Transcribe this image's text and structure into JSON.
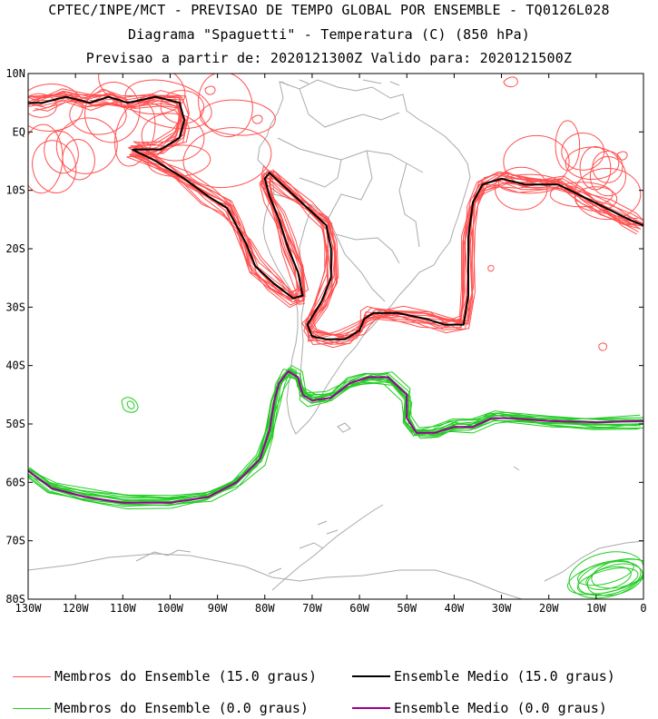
{
  "titles": {
    "line1": "CPTEC/INPE/MCT - PREVISAO DE TEMPO GLOBAL POR ENSEMBLE - TQ0126L028",
    "line2": "Diagrama \"Spaguetti\" - Temperatura (C) (850 hPa)",
    "line3": "Previsao a partir de: 2020121300Z  Valido para: 2020121500Z"
  },
  "axes": {
    "lat_labels": [
      "10N",
      "EQ",
      "10S",
      "20S",
      "30S",
      "40S",
      "50S",
      "60S",
      "70S",
      "80S"
    ],
    "lon_labels": [
      "130W",
      "120W",
      "110W",
      "100W",
      "90W",
      "80W",
      "70W",
      "60W",
      "50W",
      "40W",
      "30W",
      "20W",
      "10W",
      "0"
    ]
  },
  "colors": {
    "member_15": "#ff5050",
    "mean_15": "#000000",
    "member_0": "#22cc22",
    "mean_0": "#990099",
    "coast": "#aaaaaa"
  },
  "legend": {
    "member_15": "Membros do Ensemble (15.0 graus)",
    "mean_15": "Ensemble Medio (15.0 graus)",
    "member_0": "Membros do Ensemble (0.0 graus)",
    "mean_0": "Ensemble Medio (0.0 graus)"
  },
  "chart_data": {
    "type": "map",
    "region": {
      "lon": [
        -130,
        0
      ],
      "lat": [
        -80,
        10
      ]
    },
    "isotherms": [
      {
        "name": "Ensemble Medio (15.0 graus)",
        "value_c": 15.0,
        "lonlat": [
          [
            -130,
            5
          ],
          [
            -127,
            5
          ],
          [
            -122,
            6
          ],
          [
            -117,
            5
          ],
          [
            -113,
            6
          ],
          [
            -109,
            5
          ],
          [
            -103,
            6
          ],
          [
            -98,
            5
          ],
          [
            -97,
            2
          ],
          [
            -98,
            -1
          ],
          [
            -102,
            -3
          ],
          [
            -108,
            -3
          ],
          [
            -103,
            -5
          ],
          [
            -97,
            -8
          ],
          [
            -92,
            -11
          ],
          [
            -88,
            -13
          ],
          [
            -86,
            -16
          ],
          [
            -84,
            -19
          ],
          [
            -82,
            -23
          ],
          [
            -78,
            -26
          ],
          [
            -74,
            -28.5
          ],
          [
            -72,
            -28
          ],
          [
            -73,
            -24
          ],
          [
            -75,
            -20
          ],
          [
            -77,
            -15
          ],
          [
            -79,
            -11
          ],
          [
            -80,
            -8
          ],
          [
            -79,
            -7
          ],
          [
            -75,
            -10
          ],
          [
            -71,
            -13
          ],
          [
            -67,
            -16
          ],
          [
            -66,
            -20
          ],
          [
            -66,
            -25
          ],
          [
            -68,
            -29
          ],
          [
            -71,
            -33
          ],
          [
            -70,
            -35
          ],
          [
            -67,
            -35.5
          ],
          [
            -63,
            -35.5
          ],
          [
            -60,
            -34
          ],
          [
            -59,
            -32
          ],
          [
            -57,
            -31
          ],
          [
            -52,
            -31
          ],
          [
            -46,
            -32
          ],
          [
            -42,
            -33
          ],
          [
            -38,
            -33
          ],
          [
            -37,
            -28
          ],
          [
            -37,
            -18
          ],
          [
            -36,
            -12
          ],
          [
            -34,
            -9
          ],
          [
            -30,
            -8
          ],
          [
            -25,
            -9
          ],
          [
            -18,
            -9
          ],
          [
            -13,
            -11
          ],
          [
            -8,
            -13
          ],
          [
            -3,
            -15
          ],
          [
            0,
            -16
          ]
        ]
      },
      {
        "name": "Ensemble Medio (0.0 graus)",
        "value_c": 0.0,
        "lonlat": [
          [
            -130,
            -58
          ],
          [
            -125,
            -61
          ],
          [
            -118,
            -62.5
          ],
          [
            -110,
            -63.5
          ],
          [
            -100,
            -63.5
          ],
          [
            -92,
            -62.5
          ],
          [
            -86,
            -60
          ],
          [
            -81,
            -56
          ],
          [
            -79,
            -51
          ],
          [
            -78,
            -46
          ],
          [
            -77,
            -43
          ],
          [
            -75,
            -41
          ],
          [
            -73,
            -42
          ],
          [
            -72,
            -45
          ],
          [
            -70,
            -46
          ],
          [
            -66,
            -45.5
          ],
          [
            -62,
            -43
          ],
          [
            -58,
            -42
          ],
          [
            -54,
            -42
          ],
          [
            -50,
            -45
          ],
          [
            -50,
            -49
          ],
          [
            -48,
            -51.5
          ],
          [
            -44,
            -51.5
          ],
          [
            -40,
            -50.5
          ],
          [
            -36,
            -50.5
          ],
          [
            -32,
            -49
          ],
          [
            -28,
            -49
          ],
          [
            -20,
            -49.5
          ],
          [
            -10,
            -49.7
          ],
          [
            0,
            -49.5
          ]
        ]
      }
    ]
  }
}
